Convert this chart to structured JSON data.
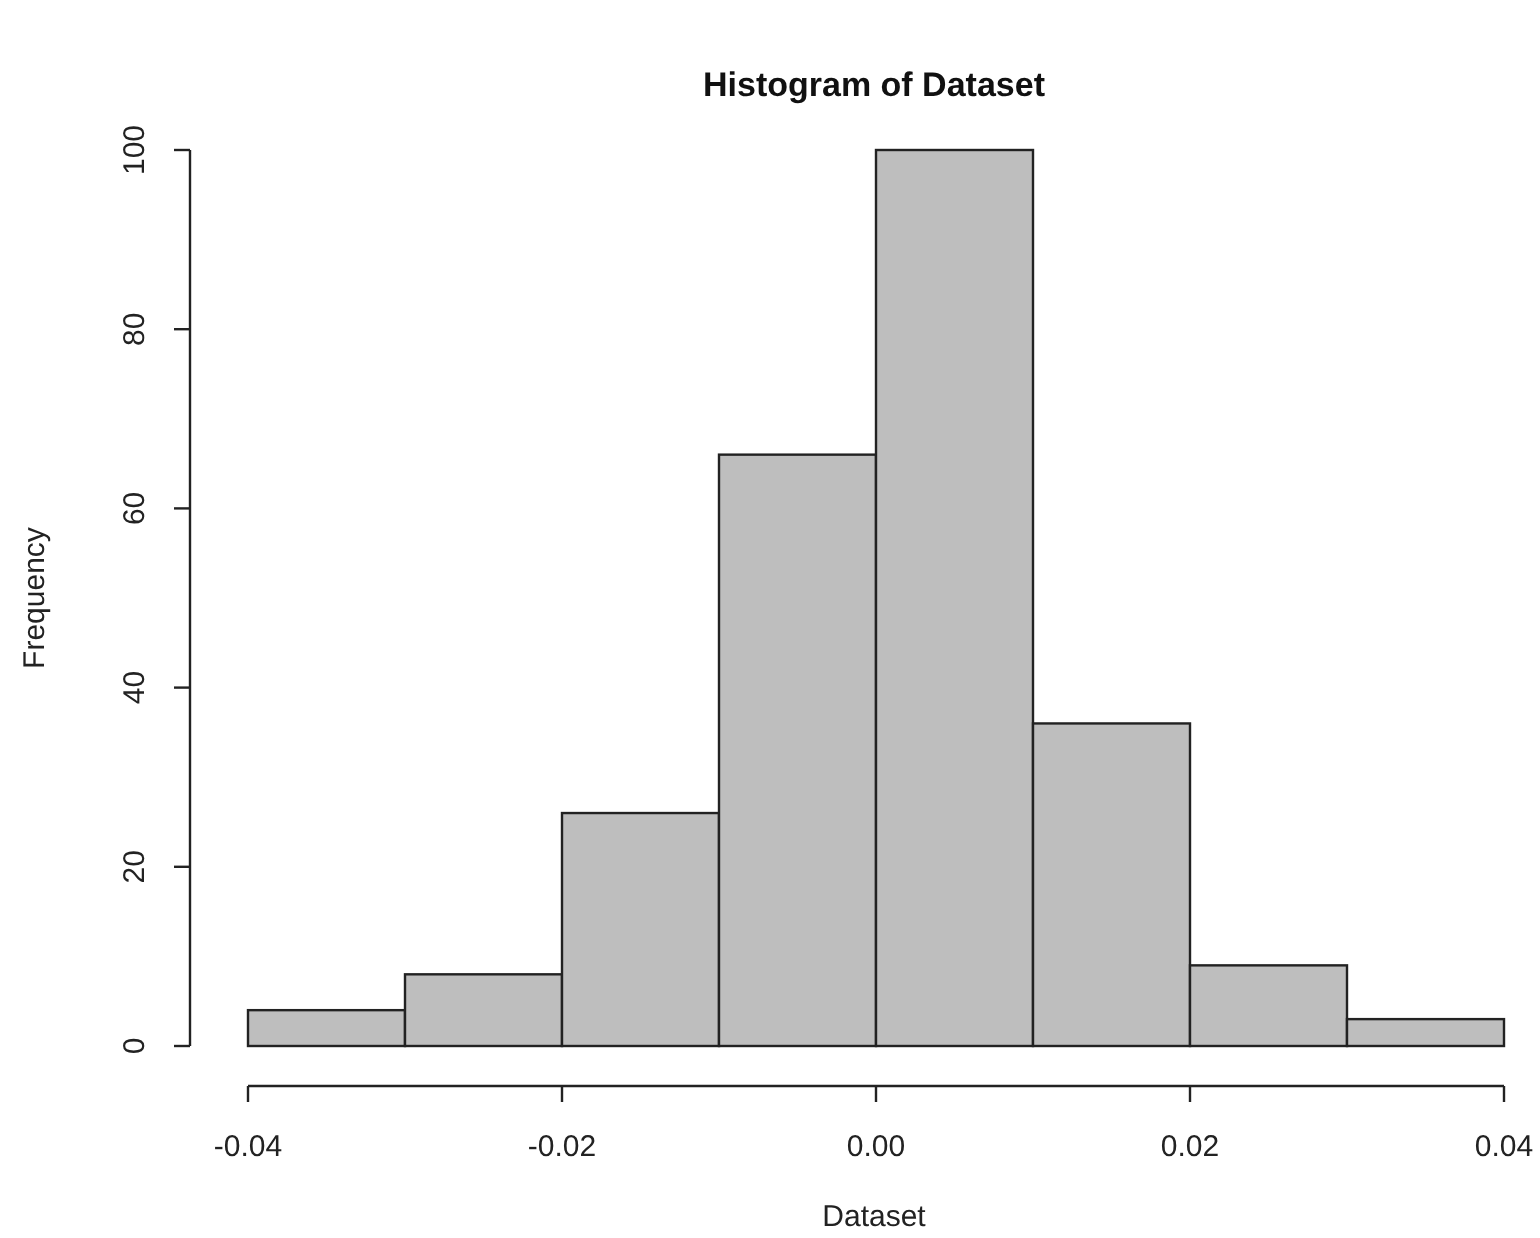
{
  "chart_data": {
    "type": "histogram",
    "title": "Histogram of Dataset",
    "xlabel": "Dataset",
    "ylabel": "Frequency",
    "bins": [
      -0.04,
      -0.03,
      -0.02,
      -0.01,
      0,
      0.01,
      0.02,
      0.03,
      0.04
    ],
    "values": [
      4,
      8,
      26,
      66,
      100,
      36,
      9,
      3
    ],
    "color": "#bebebe",
    "xlim": [
      -0.04,
      0.04
    ],
    "ylim": [
      0,
      100
    ],
    "xticks": [
      {
        "value": -0.04,
        "label": "-0.04"
      },
      {
        "value": -0.02,
        "label": "-0.02"
      },
      {
        "value": 0,
        "label": "0.00"
      },
      {
        "value": 0.02,
        "label": "0.02"
      },
      {
        "value": 0.04,
        "label": "0.04"
      }
    ],
    "yticks": [
      0,
      20,
      40,
      60,
      80,
      100
    ],
    "grid": false
  }
}
